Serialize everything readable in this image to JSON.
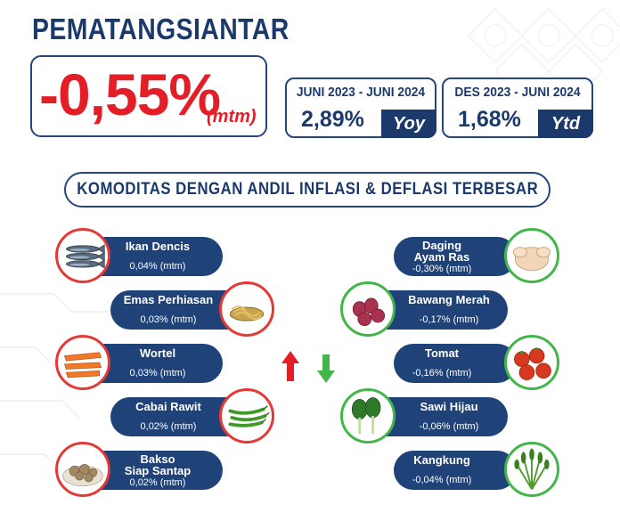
{
  "header": {
    "city": "PEMATANGSIANTAR",
    "mtm_value": "-0,55%",
    "mtm_unit": "(mtm)"
  },
  "yoy": {
    "label": "JUNI 2023 - JUNI 2024",
    "value": "2,89%",
    "tag": "Yoy"
  },
  "ytd": {
    "label": "DES 2023 - JUNI 2024",
    "value": "1,68%",
    "tag": "Ytd"
  },
  "section_title": "KOMODITAS DENGAN ANDIL INFLASI & DEFLASI TERBESAR",
  "inflation": [
    {
      "name": "Ikan Dencis",
      "value": "0,04% (mtm)",
      "icon": "fish-icon"
    },
    {
      "name": "Emas Perhiasan",
      "value": "0,03% (mtm)",
      "icon": "gold-jewelry-icon"
    },
    {
      "name": "Wortel",
      "value": "0,03% (mtm)",
      "icon": "carrot-icon"
    },
    {
      "name": "Cabai Rawit",
      "value": "0,02% (mtm)",
      "icon": "chili-icon"
    },
    {
      "name": "Bakso Siap Santap",
      "name_line1": "Bakso",
      "name_line2": "Siap Santap",
      "value": "0,02% (mtm)",
      "icon": "meatball-icon"
    }
  ],
  "deflation": [
    {
      "name": "Daging Ayam Ras",
      "name_line1": "Daging",
      "name_line2": "Ayam Ras",
      "value": "-0,30% (mtm)",
      "icon": "chicken-icon"
    },
    {
      "name": "Bawang Merah",
      "value": "-0,17% (mtm)",
      "icon": "shallot-icon"
    },
    {
      "name": "Tomat",
      "value": "-0,16% (mtm)",
      "icon": "tomato-icon"
    },
    {
      "name": "Sawi Hijau",
      "value": "-0,06% (mtm)",
      "icon": "mustard-greens-icon"
    },
    {
      "name": "Kangkung",
      "value": "-0,04% (mtm)",
      "icon": "water-spinach-icon"
    }
  ],
  "colors": {
    "navy": "#1b3a6b",
    "red": "#e41e26",
    "green": "#43b649"
  }
}
